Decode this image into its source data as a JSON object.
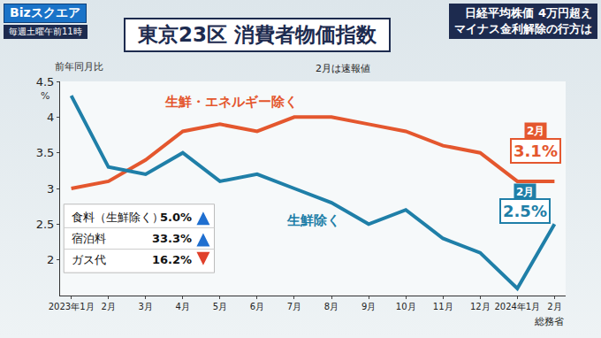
{
  "header": {
    "program": "Bizスクエア",
    "schedule": "毎週土曜午前11時",
    "headlines": [
      "日経平均株価 4万円超え",
      "マイナス金利解除の行方は"
    ]
  },
  "chart_data": {
    "type": "line",
    "title": "東京23区 消費者物価指数",
    "subtitle": "2月は速報値",
    "y_label": "前年同月比",
    "y_unit": "%",
    "source": "総務省",
    "categories": [
      "2023年1月",
      "2月",
      "3月",
      "4月",
      "5月",
      "6月",
      "7月",
      "8月",
      "9月",
      "10月",
      "11月",
      "12月",
      "2024年1月",
      "2月"
    ],
    "series": [
      {
        "name": "生鮮・エネルギー除く",
        "color": "#e4572e",
        "line_style": "solid",
        "values": [
          3.0,
          3.1,
          3.4,
          3.8,
          3.9,
          3.8,
          4.0,
          4.0,
          3.9,
          3.8,
          3.6,
          3.5,
          3.1,
          3.1
        ],
        "end_label": "2月",
        "end_value_label": "3.1%"
      },
      {
        "name": "生鮮除く",
        "color": "#1f7fa8",
        "line_style": "solid",
        "values": [
          4.3,
          3.3,
          3.2,
          3.5,
          3.1,
          3.2,
          3.0,
          2.8,
          2.5,
          2.7,
          2.3,
          2.1,
          1.6,
          2.5
        ],
        "end_label": "2月",
        "end_value_label": "2.5%"
      }
    ],
    "table": [
      {
        "label": "食料（生鮮除く）",
        "value": 5.0,
        "value_label": "5.0%",
        "direction": "up"
      },
      {
        "label": "宿泊料",
        "value": 33.3,
        "value_label": "33.3%",
        "direction": "up"
      },
      {
        "label": "ガス代",
        "value": 16.2,
        "value_label": "16.2%",
        "direction": "down"
      }
    ],
    "ylim": [
      1.5,
      4.5
    ],
    "yticks": [
      2,
      2.5,
      3,
      3.5,
      4,
      4.5
    ],
    "grid": false
  }
}
